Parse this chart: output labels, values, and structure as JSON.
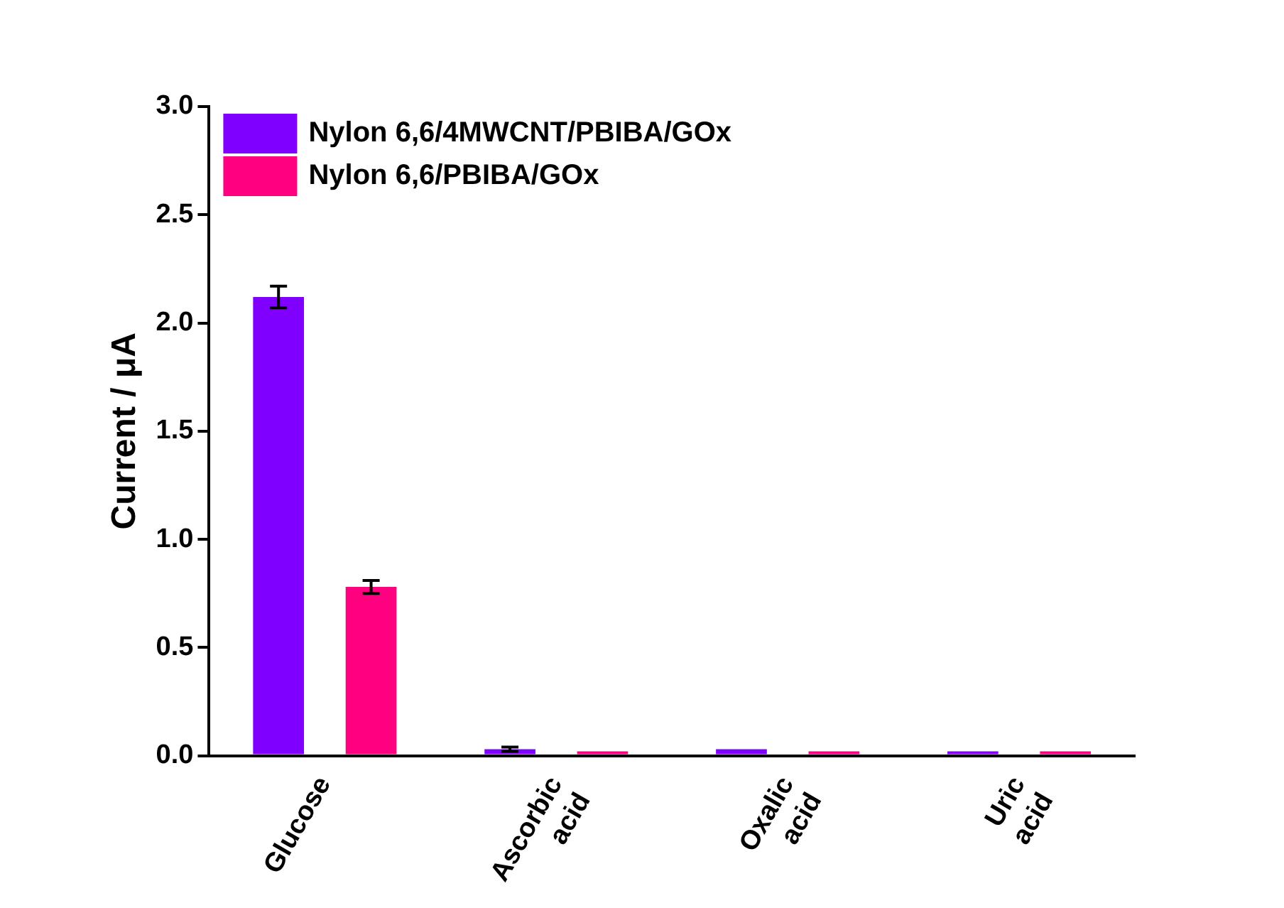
{
  "chart_data": {
    "type": "bar",
    "ylabel": "Current / μA",
    "categories": [
      "Glucose",
      "Ascorbic\nacid",
      "Oxalic\nacid",
      "Uric\nacid"
    ],
    "series": [
      {
        "name": "Nylon 6,6/4MWCNT/PBIBA/GOx",
        "color": "#8000ff",
        "values": [
          2.12,
          0.03,
          0.03,
          0.02
        ],
        "errors": [
          0.05,
          0.01,
          null,
          null
        ]
      },
      {
        "name": "Nylon 6,6/PBIBA/GOx",
        "color": "#ff0080",
        "values": [
          0.78,
          0.02,
          0.02,
          0.02
        ],
        "errors": [
          0.03,
          null,
          null,
          null
        ]
      }
    ],
    "ylim": [
      0,
      3.0
    ],
    "yticks": [
      {
        "value": 0,
        "label": "0.0"
      },
      0.5,
      {
        "value": 1,
        "label": "1.0"
      },
      1.5,
      {
        "value": 2,
        "label": "2.0"
      },
      2.5,
      {
        "value": 3,
        "label": "3.0"
      }
    ],
    "grid": false,
    "legend": "top left"
  }
}
